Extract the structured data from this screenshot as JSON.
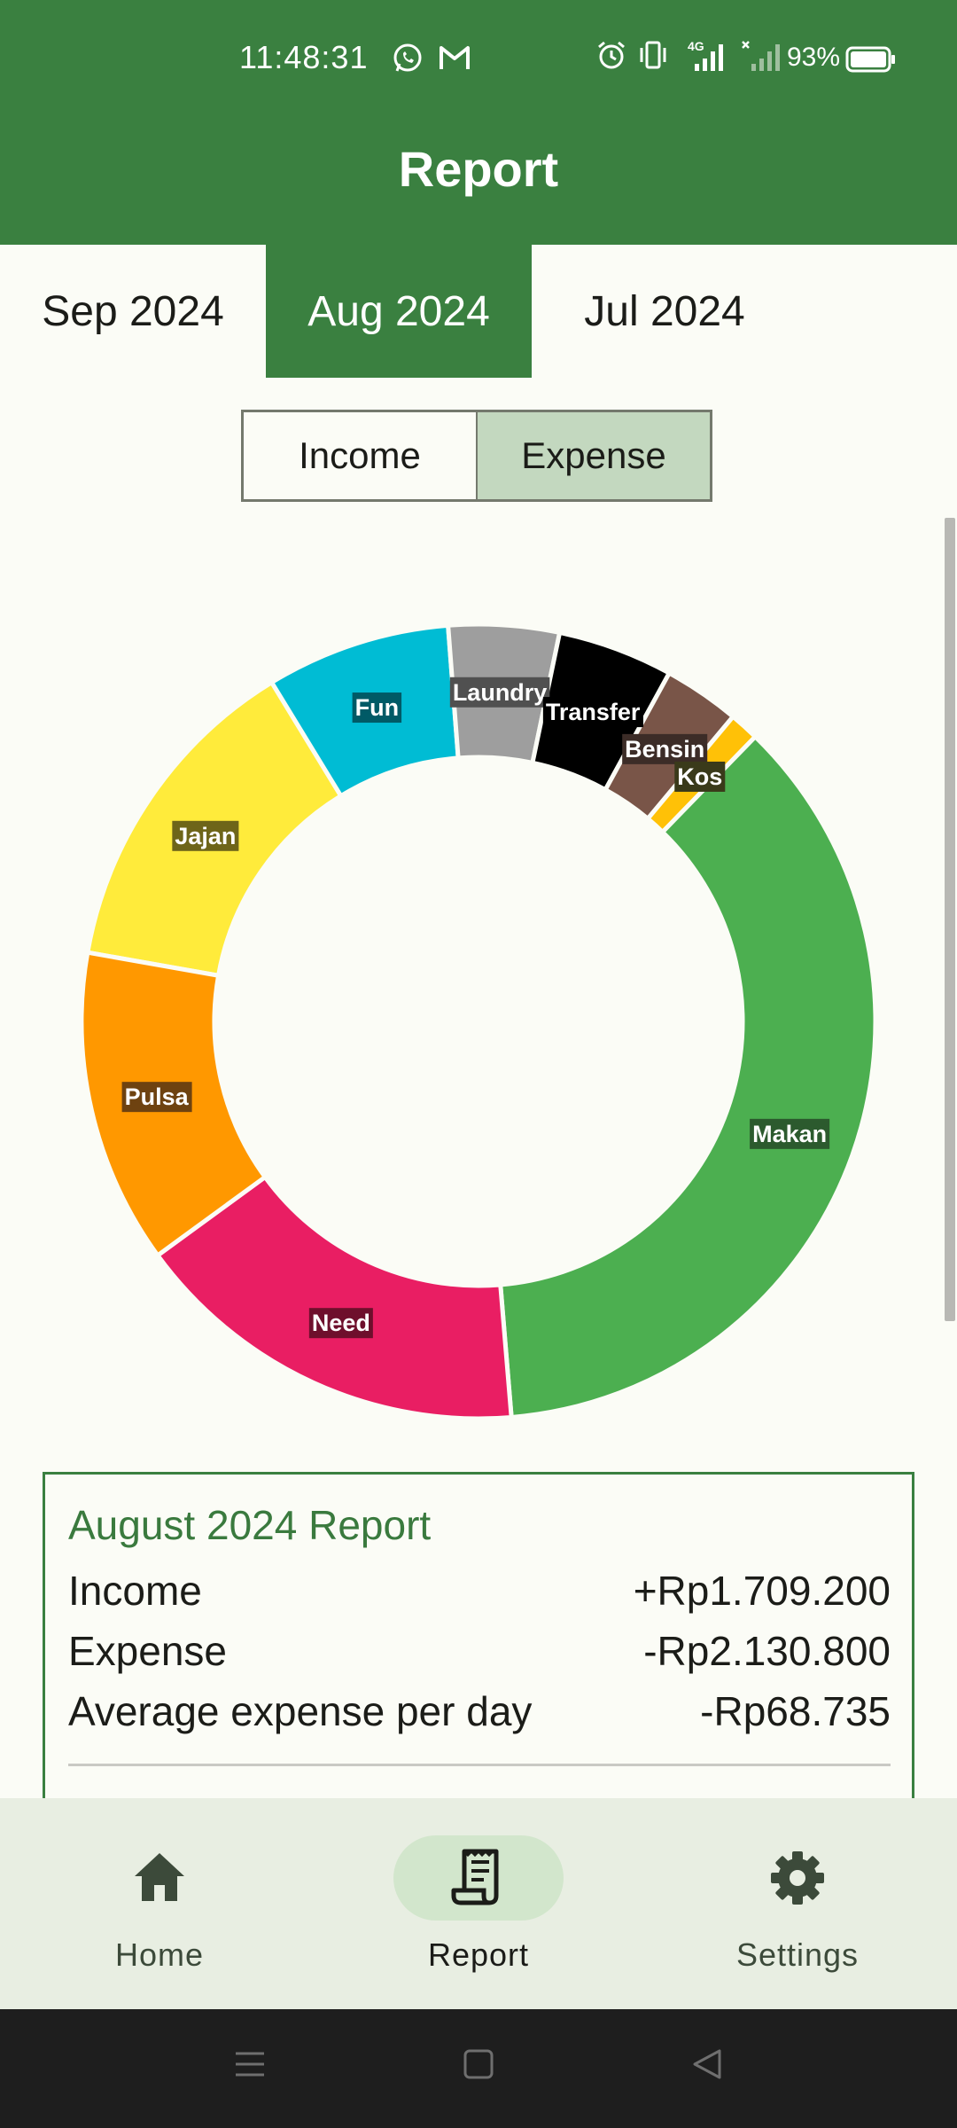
{
  "status_bar": {
    "time": "11:48:31",
    "battery": "93%",
    "network": "4G",
    "icons_left": [
      "whatsapp-icon",
      "gmail-icon"
    ],
    "icons_right": [
      "alarm-icon",
      "vibrate-icon",
      "signal-4g-icon",
      "signal-no-sim-icon",
      "battery-icon"
    ]
  },
  "app_bar": {
    "title": "Report"
  },
  "month_tabs": [
    {
      "label": "Sep 2024",
      "active": false
    },
    {
      "label": "Aug 2024",
      "active": true
    },
    {
      "label": "Jul 2024",
      "active": false
    }
  ],
  "toggle": {
    "income_label": "Income",
    "expense_label": "Expense",
    "selected": "Expense"
  },
  "chart_data": {
    "type": "pie",
    "donut": true,
    "categories": [
      "Jajan",
      "Fun",
      "Laundry",
      "Transfer",
      "Bensin",
      "Kos",
      "Makan",
      "Need",
      "Pulsa"
    ],
    "values": [
      13.5,
      7.5,
      4.5,
      4.7,
      3.1,
      1.2,
      36.4,
      16.3,
      12.8
    ],
    "colors": [
      "#ffeb3b",
      "#00bcd4",
      "#9e9e9e",
      "#000000",
      "#795548",
      "#ffc107",
      "#4caf50",
      "#e91e63",
      "#ff9800"
    ],
    "label_bg_colors": [
      "#6e6519",
      "#005a66",
      "#505050",
      "#000000",
      "#3c2c27",
      "#3a3a1a",
      "#2c5a2e",
      "#6e0f2c",
      "#6e4210"
    ]
  },
  "report": {
    "title": "August 2024 Report",
    "income_label": "Income",
    "income_value": "+Rp1.709.200",
    "expense_label": "Expense",
    "expense_value": "-Rp2.130.800",
    "avg_label": "Average expense per day",
    "avg_value": "-Rp68.735"
  },
  "bottom_nav": [
    {
      "label": "Home",
      "icon": "home-icon",
      "active": false
    },
    {
      "label": "Report",
      "icon": "receipt-icon",
      "active": true
    },
    {
      "label": "Settings",
      "icon": "gear-icon",
      "active": false
    }
  ],
  "system_nav": [
    "menu-icon",
    "home-square-icon",
    "back-triangle-icon"
  ]
}
